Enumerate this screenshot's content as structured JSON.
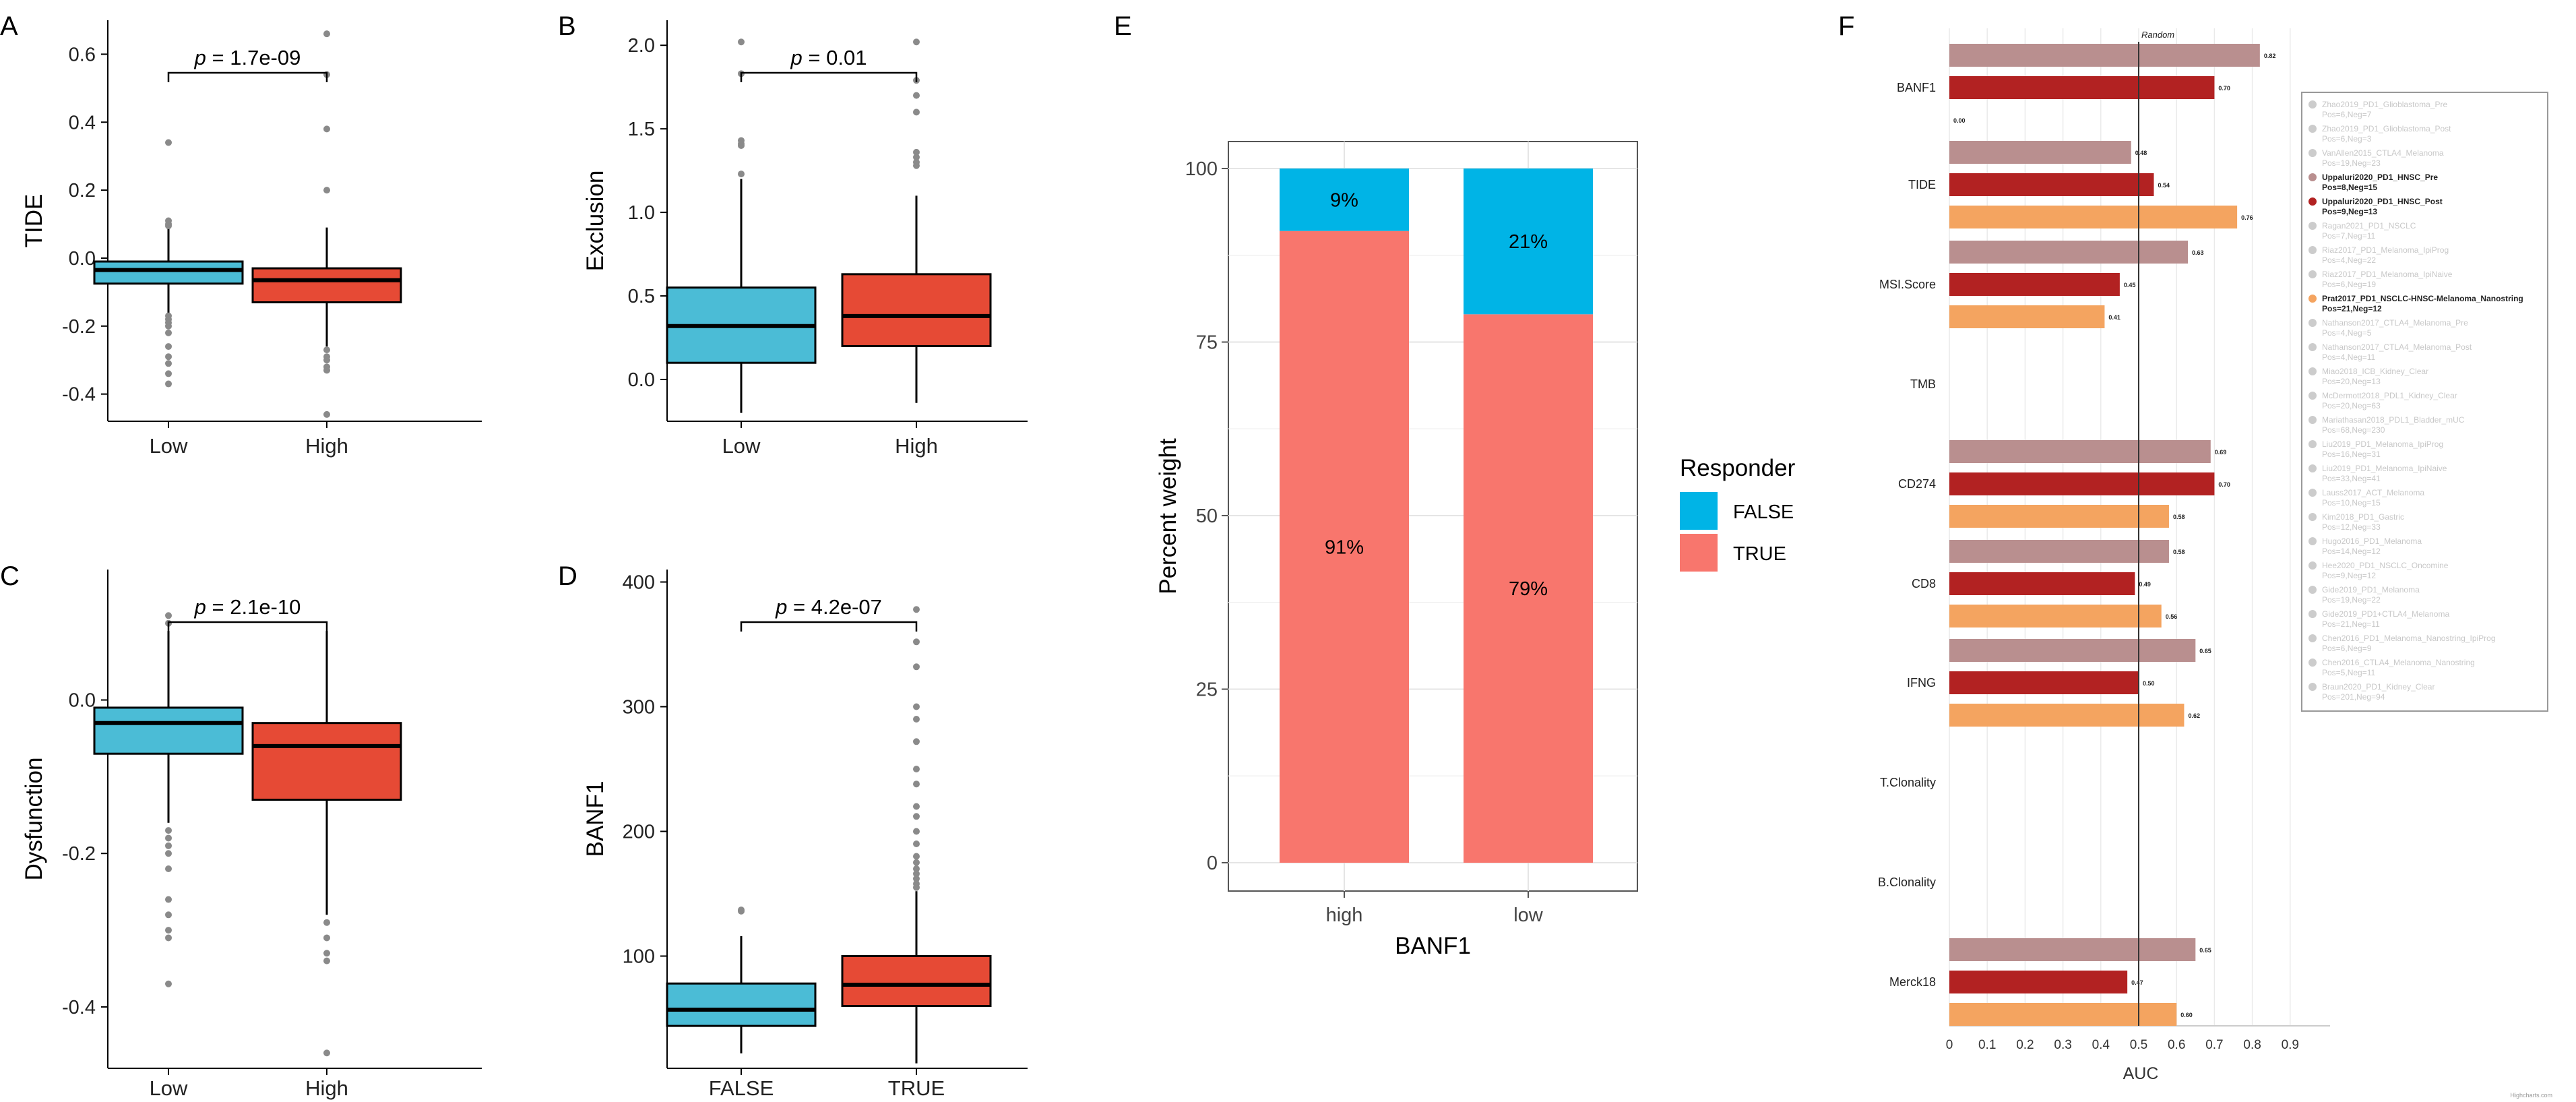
{
  "colors": {
    "low_box": "#4bbcd6",
    "high_box": "#e64a35",
    "false_bar": "#00b4e6",
    "true_bar": "#f8766d",
    "auc_mauve": "#b98f8f",
    "auc_red": "#b22222",
    "auc_orange": "#f4a460",
    "outlier": "#8a8a8a"
  },
  "chart_data": [
    {
      "panel": "A",
      "type": "box",
      "ylabel": "TIDE",
      "xlabel": "",
      "categories": [
        "Low",
        "High"
      ],
      "yticks": [
        "0.6",
        "0.4",
        "0.2",
        "0.0",
        "-0.2",
        "-0.4"
      ],
      "tick_values": [
        0.6,
        0.4,
        0.2,
        0.0,
        -0.2,
        -0.4
      ],
      "ylim": [
        -0.48,
        0.7
      ],
      "pvalue": "p = 1.7e-09",
      "boxes": [
        {
          "name": "Low",
          "q1": -0.075,
          "median": -0.035,
          "q3": -0.01,
          "wlo": -0.165,
          "whi": 0.09,
          "outliers": [
            0.34,
            0.11,
            0.1,
            0.095,
            -0.17,
            -0.18,
            -0.19,
            -0.2,
            -0.22,
            -0.26,
            -0.29,
            -0.31,
            -0.34,
            -0.37
          ]
        },
        {
          "name": "High",
          "q1": -0.13,
          "median": -0.065,
          "q3": -0.03,
          "wlo": -0.26,
          "whi": 0.09,
          "outliers": [
            0.66,
            0.54,
            0.38,
            0.2,
            -0.27,
            -0.29,
            -0.3,
            -0.32,
            -0.33,
            -0.46
          ]
        }
      ]
    },
    {
      "panel": "B",
      "type": "box",
      "ylabel": "Exclusion",
      "xlabel": "",
      "categories": [
        "Low",
        "High"
      ],
      "yticks": [
        "2.0",
        "1.5",
        "1.0",
        "0.5",
        "0.0"
      ],
      "tick_values": [
        2.0,
        1.5,
        1.0,
        0.5,
        0.0
      ],
      "ylim": [
        -0.25,
        2.15
      ],
      "pvalue": "p = 0.01",
      "boxes": [
        {
          "name": "Low",
          "q1": 0.1,
          "median": 0.32,
          "q3": 0.55,
          "wlo": -0.2,
          "whi": 1.2,
          "outliers": [
            2.02,
            1.83,
            1.43,
            1.41,
            1.4,
            1.23
          ]
        },
        {
          "name": "High",
          "q1": 0.2,
          "median": 0.38,
          "q3": 0.63,
          "wlo": -0.14,
          "whi": 1.1,
          "outliers": [
            2.02,
            1.79,
            1.7,
            1.6,
            1.36,
            1.33,
            1.3,
            1.28
          ]
        }
      ]
    },
    {
      "panel": "C",
      "type": "box",
      "ylabel": "Dysfunction",
      "xlabel": "",
      "categories": [
        "Low",
        "High"
      ],
      "yticks": [
        "0.0",
        "-0.2",
        "-0.4"
      ],
      "tick_values": [
        0.0,
        -0.2,
        -0.4
      ],
      "ylim": [
        -0.48,
        0.17
      ],
      "pvalue": "p = 2.1e-10",
      "boxes": [
        {
          "name": "Low",
          "q1": -0.07,
          "median": -0.03,
          "q3": -0.01,
          "wlo": -0.16,
          "whi": 0.09,
          "outliers": [
            0.11,
            0.1,
            -0.17,
            -0.18,
            -0.19,
            -0.2,
            -0.22,
            -0.26,
            -0.28,
            -0.3,
            -0.31,
            -0.37
          ]
        },
        {
          "name": "High",
          "q1": -0.13,
          "median": -0.06,
          "q3": -0.03,
          "wlo": -0.28,
          "whi": 0.09,
          "outliers": [
            -0.29,
            -0.31,
            -0.33,
            -0.34,
            -0.46
          ]
        }
      ]
    },
    {
      "panel": "D",
      "type": "box",
      "ylabel": "BANF1",
      "xlabel": "",
      "categories": [
        "FALSE",
        "TRUE"
      ],
      "yticks": [
        "400",
        "300",
        "200",
        "100"
      ],
      "tick_values": [
        400,
        300,
        200,
        100
      ],
      "ylim": [
        10,
        410
      ],
      "pvalue": "p = 4.2e-07",
      "boxes": [
        {
          "name": "FALSE",
          "q1": 44,
          "median": 57,
          "q3": 78,
          "wlo": 22,
          "whi": 116,
          "outliers": [
            137,
            136
          ]
        },
        {
          "name": "TRUE",
          "q1": 60,
          "median": 77,
          "q3": 100,
          "wlo": 14,
          "whi": 152,
          "outliers": [
            378,
            352,
            332,
            300,
            290,
            272,
            250,
            238,
            220,
            212,
            200,
            190,
            180,
            175,
            170,
            166,
            162,
            158,
            155
          ]
        }
      ]
    },
    {
      "panel": "E",
      "type": "stacked_bar",
      "title": "",
      "xlabel": "BANF1",
      "ylabel": "Percent weight",
      "categories": [
        "high",
        "low"
      ],
      "ylim": [
        0,
        100
      ],
      "yticks": [
        "100",
        "75",
        "50",
        "25",
        "0"
      ],
      "tick_values": [
        100,
        75,
        50,
        25,
        0
      ],
      "legend_title": "Responder",
      "legend_position": "right",
      "series": [
        {
          "name": "TRUE",
          "values": [
            91,
            79
          ],
          "labels": [
            "91%",
            "79%"
          ]
        },
        {
          "name": "FALSE",
          "values": [
            9,
            21
          ],
          "labels": [
            "9%",
            "21%"
          ]
        }
      ],
      "legend": [
        "FALSE",
        "TRUE"
      ]
    },
    {
      "panel": "F",
      "type": "bar",
      "orientation": "horizontal",
      "xlabel": "AUC",
      "reference_label": "Random",
      "reference_value": 0.5,
      "xlim": [
        0,
        1.0
      ],
      "xticks": [
        "0",
        "0.1",
        "0.2",
        "0.3",
        "0.4",
        "0.5",
        "0.6",
        "0.7",
        "0.8",
        "0.9"
      ],
      "tick_values": [
        0,
        0.1,
        0.2,
        0.3,
        0.4,
        0.5,
        0.6,
        0.7,
        0.8,
        0.9
      ],
      "footer": "Highcharts.com",
      "categories": [
        "BANF1",
        "TIDE",
        "MSI.Score",
        "TMB",
        "CD274",
        "CD8",
        "IFNG",
        "T.Clonality",
        "B.Clonality",
        "Merck18"
      ],
      "series": [
        {
          "name": "Uppaluri2020_PD1_HNSC_Pre",
          "values": [
            0.82,
            0.48,
            0.63,
            null,
            0.69,
            0.58,
            0.65,
            null,
            null,
            0.65
          ],
          "labels": [
            "0.82",
            "0.48",
            "0.63",
            "",
            "0.69",
            "0.58",
            "0.65",
            "",
            "",
            "0.65"
          ]
        },
        {
          "name": "Uppaluri2020_PD1_HNSC_Post",
          "values": [
            0.7,
            0.54,
            0.45,
            null,
            0.7,
            0.49,
            0.5,
            null,
            null,
            0.47
          ],
          "labels": [
            "0.70",
            "0.54",
            "0.45",
            "",
            "0.70",
            "0.49",
            "0.50",
            "",
            "",
            "0.47"
          ]
        },
        {
          "name": "Prat2017_PD1_NSCLC-HNSC-Melanoma_Nanostring",
          "values": [
            0.0,
            0.76,
            0.41,
            null,
            0.58,
            0.56,
            0.62,
            null,
            null,
            0.6
          ],
          "labels": [
            "0.00",
            "0.76",
            "0.41",
            "",
            "0.58",
            "0.56",
            "0.62",
            "",
            "",
            "0.60"
          ]
        }
      ],
      "legend": [
        {
          "name": "Zhao2019_PD1_Glioblastoma_Pre",
          "sub": "Pos=6,Neg=7",
          "active": false,
          "color": "#cccccc"
        },
        {
          "name": "Zhao2019_PD1_Glioblastoma_Post",
          "sub": "Pos=6,Neg=3",
          "active": false,
          "color": "#cccccc"
        },
        {
          "name": "VanAllen2015_CTLA4_Melanoma",
          "sub": "Pos=19,Neg=23",
          "active": false,
          "color": "#cccccc"
        },
        {
          "name": "Uppaluri2020_PD1_HNSC_Pre",
          "sub": "Pos=8,Neg=15",
          "active": true,
          "color": "#b98f8f"
        },
        {
          "name": "Uppaluri2020_PD1_HNSC_Post",
          "sub": "Pos=9,Neg=13",
          "active": true,
          "color": "#b22222"
        },
        {
          "name": "Ragan2021_PD1_NSCLC",
          "sub": "Pos=7,Neg=11",
          "active": false,
          "color": "#cccccc"
        },
        {
          "name": "Riaz2017_PD1_Melanoma_IpiProg",
          "sub": "Pos=4,Neg=22",
          "active": false,
          "color": "#cccccc"
        },
        {
          "name": "Riaz2017_PD1_Melanoma_IpiNaive",
          "sub": "Pos=6,Neg=19",
          "active": false,
          "color": "#cccccc"
        },
        {
          "name": "Prat2017_PD1_NSCLC-HNSC-Melanoma_Nanostring",
          "sub": "Pos=21,Neg=12",
          "active": true,
          "color": "#f4a460"
        },
        {
          "name": "Nathanson2017_CTLA4_Melanoma_Pre",
          "sub": "Pos=4,Neg=5",
          "active": false,
          "color": "#cccccc"
        },
        {
          "name": "Nathanson2017_CTLA4_Melanoma_Post",
          "sub": "Pos=4,Neg=11",
          "active": false,
          "color": "#cccccc"
        },
        {
          "name": "Miao2018_ICB_Kidney_Clear",
          "sub": "Pos=20,Neg=13",
          "active": false,
          "color": "#cccccc"
        },
        {
          "name": "McDermott2018_PDL1_Kidney_Clear",
          "sub": "Pos=20,Neg=63",
          "active": false,
          "color": "#cccccc"
        },
        {
          "name": "Mariathasan2018_PDL1_Bladder_mUC",
          "sub": "Pos=68,Neg=230",
          "active": false,
          "color": "#cccccc"
        },
        {
          "name": "Liu2019_PD1_Melanoma_IpiProg",
          "sub": "Pos=16,Neg=31",
          "active": false,
          "color": "#cccccc"
        },
        {
          "name": "Liu2019_PD1_Melanoma_IpiNaive",
          "sub": "Pos=33,Neg=41",
          "active": false,
          "color": "#cccccc"
        },
        {
          "name": "Lauss2017_ACT_Melanoma",
          "sub": "Pos=10,Neg=15",
          "active": false,
          "color": "#cccccc"
        },
        {
          "name": "Kim2018_PD1_Gastric",
          "sub": "Pos=12,Neg=33",
          "active": false,
          "color": "#cccccc"
        },
        {
          "name": "Hugo2016_PD1_Melanoma",
          "sub": "Pos=14,Neg=12",
          "active": false,
          "color": "#cccccc"
        },
        {
          "name": "Hee2020_PD1_NSCLC_Oncomine",
          "sub": "Pos=9,Neg=12",
          "active": false,
          "color": "#cccccc"
        },
        {
          "name": "Gide2019_PD1_Melanoma",
          "sub": "Pos=19,Neg=22",
          "active": false,
          "color": "#cccccc"
        },
        {
          "name": "Gide2019_PD1+CTLA4_Melanoma",
          "sub": "Pos=21,Neg=11",
          "active": false,
          "color": "#cccccc"
        },
        {
          "name": "Chen2016_PD1_Melanoma_Nanostring_IpiProg",
          "sub": "Pos=6,Neg=9",
          "active": false,
          "color": "#cccccc"
        },
        {
          "name": "Chen2016_CTLA4_Melanoma_Nanostring",
          "sub": "Pos=5,Neg=11",
          "active": false,
          "color": "#cccccc"
        },
        {
          "name": "Braun2020_PD1_Kidney_Clear",
          "sub": "Pos=201,Neg=94",
          "active": false,
          "color": "#cccccc"
        }
      ]
    }
  ]
}
